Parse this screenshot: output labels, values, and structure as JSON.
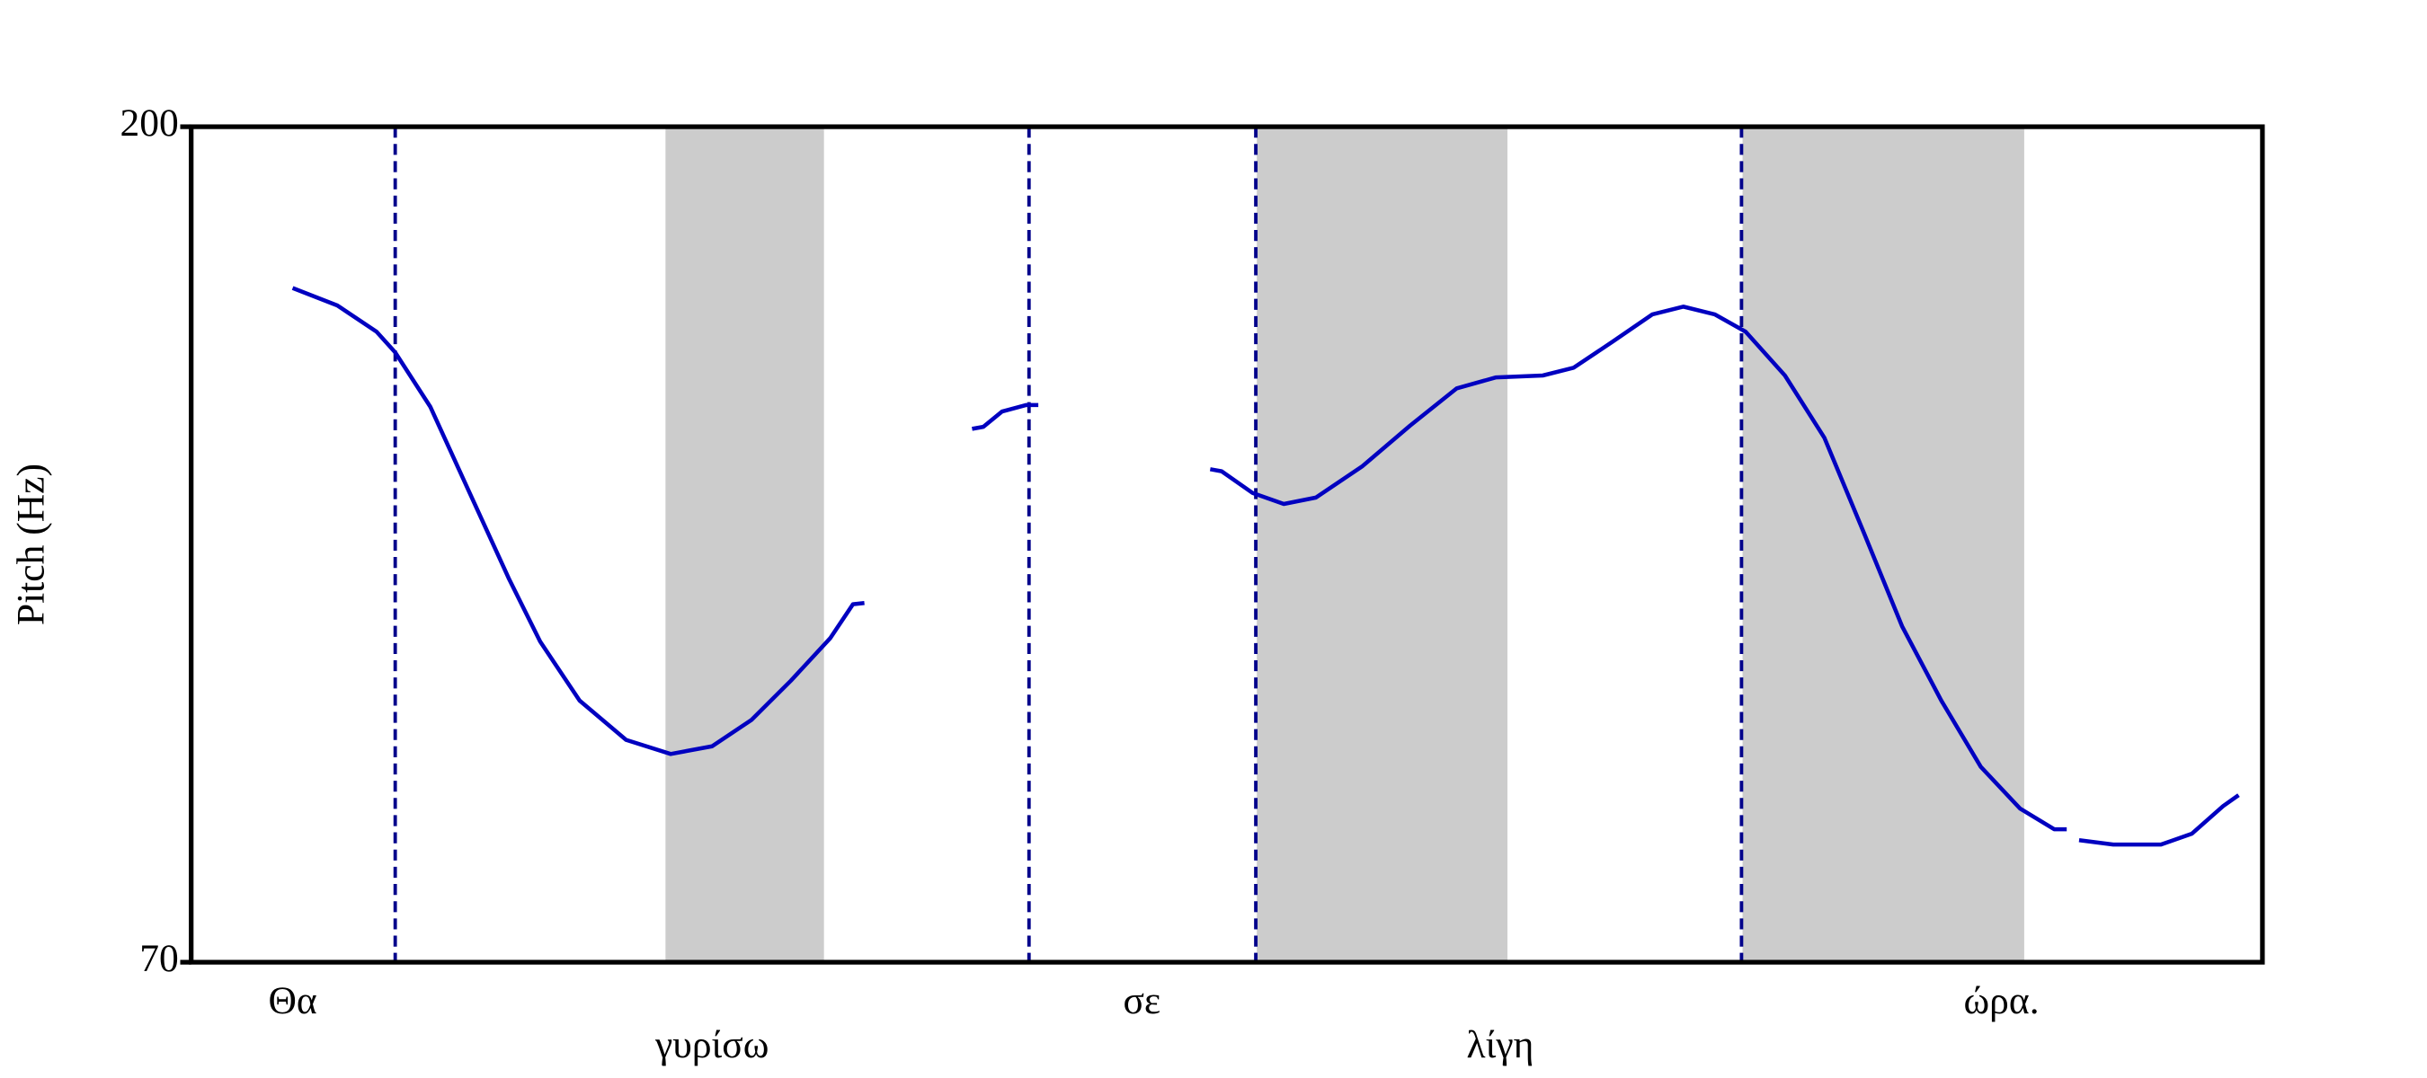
{
  "chart_data": {
    "type": "line",
    "ylabel": "Pitch (Hz)",
    "ylim": [
      70,
      200
    ],
    "yticks": [
      70,
      200
    ],
    "xlim": [
      0,
      2
    ],
    "series": [
      {
        "color": "#0000c0",
        "x": [
          0.098,
          0.141,
          0.179,
          0.197,
          0.231,
          0.269,
          0.307,
          0.337,
          0.375,
          0.42,
          0.463,
          0.503,
          0.541,
          0.579,
          0.617,
          0.639,
          0.65,
          0.7,
          0.754,
          0.765,
          0.783,
          0.806,
          0.818,
          0.9,
          0.984,
          0.995,
          1.025,
          1.055,
          1.086,
          1.131,
          1.177,
          1.222,
          1.26,
          1.305,
          1.335,
          1.373,
          1.411,
          1.441,
          1.471,
          1.501,
          1.539,
          1.577,
          1.615,
          1.652,
          1.69,
          1.728,
          1.766,
          1.799,
          1.811,
          1.815,
          1.823,
          1.856,
          1.902,
          1.932,
          1.962,
          1.977
        ],
        "values": [
          174.9,
          172.2,
          168.1,
          164.9,
          156.4,
          143.0,
          129.6,
          119.9,
          110.7,
          104.6,
          102.4,
          103.6,
          107.7,
          113.8,
          120.4,
          125.7,
          125.9,
          null,
          153.0,
          153.3,
          155.7,
          156.7,
          156.7,
          null,
          146.7,
          146.4,
          143.0,
          141.3,
          142.3,
          147.2,
          153.5,
          159.3,
          161.0,
          161.3,
          162.5,
          166.6,
          170.8,
          172.0,
          170.8,
          168.1,
          161.3,
          151.6,
          136.9,
          122.3,
          110.7,
          100.4,
          93.9,
          90.7,
          90.7,
          null,
          89.0,
          88.3,
          88.3,
          90.0,
          94.3,
          96.0
        ]
      }
    ],
    "shaded_intervals": [
      [
        0.458,
        0.611
      ],
      [
        1.029,
        1.271
      ],
      [
        1.498,
        1.77
      ]
    ],
    "boundaries": [
      0.197,
      0.809,
      1.028,
      1.497
    ],
    "words": [
      {
        "text": "Θα",
        "x": 0.098
      },
      {
        "text": "γυρίσω",
        "x": 0.503
      },
      {
        "text": "σε",
        "x": 0.918
      },
      {
        "text": "λίγη",
        "x": 1.264
      },
      {
        "text": "ώρα.",
        "x": 1.748
      }
    ]
  }
}
